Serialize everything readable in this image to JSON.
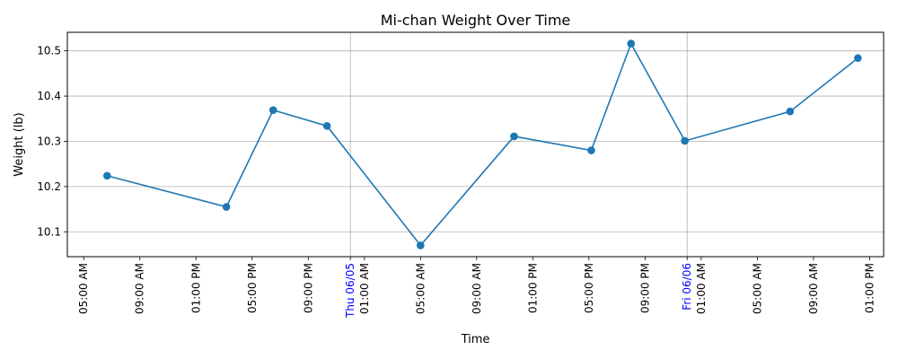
{
  "chart_data": {
    "type": "line",
    "title": "Mi-chan Weight Over Time",
    "xlabel": "Time",
    "ylabel": "Weight (lb)",
    "grid": true,
    "series": [
      {
        "color": "#1f77b4",
        "marker": "circle",
        "points": [
          {
            "x": "2025-06-04 06:40",
            "y": 10.224
          },
          {
            "x": "2025-06-04 15:10",
            "y": 10.155
          },
          {
            "x": "2025-06-04 18:30",
            "y": 10.369
          },
          {
            "x": "2025-06-04 22:20",
            "y": 10.334
          },
          {
            "x": "2025-06-05 05:00",
            "y": 10.07
          },
          {
            "x": "2025-06-05 11:40",
            "y": 10.311
          },
          {
            "x": "2025-06-05 17:10",
            "y": 10.28
          },
          {
            "x": "2025-06-05 20:00",
            "y": 10.516
          },
          {
            "x": "2025-06-05 23:50",
            "y": 10.301
          },
          {
            "x": "2025-06-06 07:20",
            "y": 10.366
          },
          {
            "x": "2025-06-06 12:10",
            "y": 10.484
          }
        ]
      }
    ],
    "xlim": [
      "2025-06-04 03:50",
      "2025-06-06 14:00"
    ],
    "ylim": [
      10.045,
      10.541
    ],
    "yticks": [
      10.1,
      10.2,
      10.3,
      10.4,
      10.5
    ],
    "ytick_labels": [
      "10.1",
      "10.2",
      "10.3",
      "10.4",
      "10.5"
    ],
    "xticks": [
      {
        "x": "2025-06-04 05:00",
        "label": "05:00 AM"
      },
      {
        "x": "2025-06-04 09:00",
        "label": "09:00 AM"
      },
      {
        "x": "2025-06-04 13:00",
        "label": "01:00 PM"
      },
      {
        "x": "2025-06-04 17:00",
        "label": "05:00 PM"
      },
      {
        "x": "2025-06-04 21:00",
        "label": "09:00 PM"
      },
      {
        "x": "2025-06-05 01:00",
        "label": "01:00 AM"
      },
      {
        "x": "2025-06-05 05:00",
        "label": "05:00 AM"
      },
      {
        "x": "2025-06-05 09:00",
        "label": "09:00 AM"
      },
      {
        "x": "2025-06-05 13:00",
        "label": "01:00 PM"
      },
      {
        "x": "2025-06-05 17:00",
        "label": "05:00 PM"
      },
      {
        "x": "2025-06-05 21:00",
        "label": "09:00 PM"
      },
      {
        "x": "2025-06-06 01:00",
        "label": "01:00 AM"
      },
      {
        "x": "2025-06-06 05:00",
        "label": "05:00 AM"
      },
      {
        "x": "2025-06-06 09:00",
        "label": "09:00 AM"
      },
      {
        "x": "2025-06-06 13:00",
        "label": "01:00 PM"
      }
    ],
    "day_markers": [
      {
        "x": "2025-06-05 00:00",
        "label": "Thu 06/05",
        "color": "#0000ff"
      },
      {
        "x": "2025-06-06 00:00",
        "label": "Fri 06/06",
        "color": "#0000ff"
      }
    ]
  }
}
